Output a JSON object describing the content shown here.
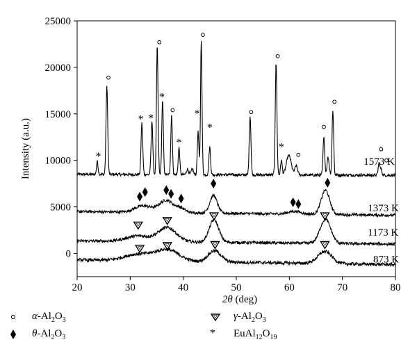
{
  "chart_data": {
    "type": "line",
    "xlabel_symbol": "2θ",
    "xlabel_unit": "(deg)",
    "ylabel": "Intensity (a.u.)",
    "xlim": [
      20,
      80
    ],
    "ylim": [
      -2500,
      25000
    ],
    "xticks": [
      20,
      30,
      40,
      50,
      60,
      70,
      80
    ],
    "yticks": [
      0,
      5000,
      10000,
      15000,
      20000,
      25000
    ],
    "grid": false,
    "legend_position": "below",
    "series": [
      {
        "name": "1573 K",
        "baseline": 8500,
        "baseline_end": 8400,
        "peaks": [
          {
            "x": 23.8,
            "h": 1400,
            "w": 0.15
          },
          {
            "x": 25.6,
            "h": 9400,
            "w": 0.16
          },
          {
            "x": 32.2,
            "h": 5500,
            "w": 0.16
          },
          {
            "x": 34.1,
            "h": 5800,
            "w": 0.16
          },
          {
            "x": 35.1,
            "h": 13900,
            "w": 0.15
          },
          {
            "x": 36.1,
            "h": 7900,
            "w": 0.15
          },
          {
            "x": 37.8,
            "h": 6400,
            "w": 0.15
          },
          {
            "x": 39.2,
            "h": 2900,
            "w": 0.15
          },
          {
            "x": 40.8,
            "h": 600,
            "w": 0.2
          },
          {
            "x": 41.7,
            "h": 600,
            "w": 0.2
          },
          {
            "x": 42.8,
            "h": 4600,
            "w": 0.15
          },
          {
            "x": 43.4,
            "h": 14500,
            "w": 0.14
          },
          {
            "x": 45.0,
            "h": 3000,
            "w": 0.15
          },
          {
            "x": 52.6,
            "h": 6300,
            "w": 0.16
          },
          {
            "x": 57.5,
            "h": 12000,
            "w": 0.16
          },
          {
            "x": 58.5,
            "h": 1600,
            "w": 0.15
          },
          {
            "x": 59.9,
            "h": 2100,
            "w": 0.45
          },
          {
            "x": 61.3,
            "h": 1000,
            "w": 0.25
          },
          {
            "x": 66.5,
            "h": 4000,
            "w": 0.16
          },
          {
            "x": 67.3,
            "h": 1900,
            "w": 0.2
          },
          {
            "x": 68.2,
            "h": 7000,
            "w": 0.15
          },
          {
            "x": 76.9,
            "h": 1300,
            "w": 0.16
          },
          {
            "x": 77.3,
            "h": 600,
            "w": 0.16
          }
        ],
        "noise": 150
      },
      {
        "name": "1373 K",
        "baseline": 4500,
        "baseline_end": 4100,
        "peaks": [
          {
            "x": 32.5,
            "h": 700,
            "w": 1.6
          },
          {
            "x": 36.8,
            "h": 1300,
            "w": 1.3
          },
          {
            "x": 39.5,
            "h": 450,
            "w": 0.9
          },
          {
            "x": 45.7,
            "h": 1900,
            "w": 0.7
          },
          {
            "x": 61.0,
            "h": 300,
            "w": 1.2
          },
          {
            "x": 66.8,
            "h": 2600,
            "w": 0.8
          }
        ],
        "noise": 150
      },
      {
        "name": "1173 K",
        "baseline": 1350,
        "baseline_end": 1000,
        "peaks": [
          {
            "x": 31.5,
            "h": 600,
            "w": 2.2
          },
          {
            "x": 37.0,
            "h": 1500,
            "w": 1.7
          },
          {
            "x": 45.8,
            "h": 2400,
            "w": 0.9
          },
          {
            "x": 66.8,
            "h": 2600,
            "w": 1.0
          }
        ],
        "noise": 160
      },
      {
        "name": "873 K",
        "baseline": -700,
        "baseline_end": -1200,
        "peaks": [
          {
            "x": 31.5,
            "h": 700,
            "w": 2.6
          },
          {
            "x": 37.0,
            "h": 1200,
            "w": 2.2
          },
          {
            "x": 45.9,
            "h": 1200,
            "w": 1.2
          },
          {
            "x": 66.7,
            "h": 1300,
            "w": 1.3
          }
        ],
        "noise": 170
      }
    ],
    "series_labels": [
      {
        "text": "1573 K",
        "x": 74.0,
        "y": 9900
      },
      {
        "text": "1373 K",
        "x": 74.8,
        "y": 4900
      },
      {
        "text": "1173 K",
        "x": 74.8,
        "y": 2300
      },
      {
        "text": "873 K",
        "x": 75.8,
        "y": -600
      }
    ],
    "markers": [
      {
        "symbol": "circle",
        "x": 25.9,
        "y": 18900
      },
      {
        "symbol": "circle",
        "x": 35.5,
        "y": 22700
      },
      {
        "symbol": "circle",
        "x": 38.0,
        "y": 15400
      },
      {
        "symbol": "circle",
        "x": 43.7,
        "y": 23500
      },
      {
        "symbol": "circle",
        "x": 52.8,
        "y": 15200
      },
      {
        "symbol": "circle",
        "x": 57.8,
        "y": 21200
      },
      {
        "symbol": "circle",
        "x": 61.7,
        "y": 10600
      },
      {
        "symbol": "circle",
        "x": 66.5,
        "y": 13600
      },
      {
        "symbol": "circle",
        "x": 68.5,
        "y": 16300
      },
      {
        "symbol": "circle",
        "x": 77.3,
        "y": 11200
      },
      {
        "symbol": "circle",
        "x": 78.3,
        "y": 10000
      },
      {
        "symbol": "star",
        "x": 24.0,
        "y": 10500
      },
      {
        "symbol": "star",
        "x": 32.0,
        "y": 14500
      },
      {
        "symbol": "star",
        "x": 33.9,
        "y": 14600
      },
      {
        "symbol": "star",
        "x": 36.0,
        "y": 16900
      },
      {
        "symbol": "star",
        "x": 39.2,
        "y": 12000
      },
      {
        "symbol": "star",
        "x": 42.6,
        "y": 15100
      },
      {
        "symbol": "star",
        "x": 45.0,
        "y": 13600
      },
      {
        "symbol": "star",
        "x": 58.5,
        "y": 11500
      },
      {
        "symbol": "diamond",
        "x": 31.8,
        "y": 6100
      },
      {
        "symbol": "diamond",
        "x": 32.8,
        "y": 6600
      },
      {
        "symbol": "diamond",
        "x": 36.8,
        "y": 6800
      },
      {
        "symbol": "diamond",
        "x": 37.7,
        "y": 6400
      },
      {
        "symbol": "diamond",
        "x": 39.6,
        "y": 5900
      },
      {
        "symbol": "diamond",
        "x": 45.7,
        "y": 7500
      },
      {
        "symbol": "diamond",
        "x": 60.7,
        "y": 5500
      },
      {
        "symbol": "diamond",
        "x": 61.7,
        "y": 5300
      },
      {
        "symbol": "diamond",
        "x": 67.2,
        "y": 7600
      },
      {
        "symbol": "triangle",
        "x": 31.5,
        "y": 3000
      },
      {
        "symbol": "triangle",
        "x": 37.0,
        "y": 3500
      },
      {
        "symbol": "triangle",
        "x": 45.8,
        "y": 4000
      },
      {
        "symbol": "triangle",
        "x": 66.7,
        "y": 4000
      },
      {
        "symbol": "triangle",
        "x": 31.8,
        "y": 500
      },
      {
        "symbol": "triangle",
        "x": 37.0,
        "y": 800
      },
      {
        "symbol": "triangle",
        "x": 46.0,
        "y": 900
      },
      {
        "symbol": "triangle",
        "x": 66.7,
        "y": 900
      }
    ]
  },
  "legend": {
    "alpha": {
      "symbol": "circle",
      "greek": "α",
      "text": "-Al",
      "sub1": "2",
      "o": "O",
      "sub2": "3"
    },
    "gamma": {
      "symbol": "triangle",
      "greek": "γ",
      "text": "-Al",
      "sub1": "2",
      "o": "O",
      "sub2": "3"
    },
    "theta": {
      "symbol": "diamond",
      "greek": "θ",
      "text": "-Al",
      "sub1": "2",
      "o": "O",
      "sub2": "3"
    },
    "eu": {
      "symbol": "star",
      "text": "EuAl",
      "sub1": "12",
      "o": "O",
      "sub2": "19"
    }
  }
}
